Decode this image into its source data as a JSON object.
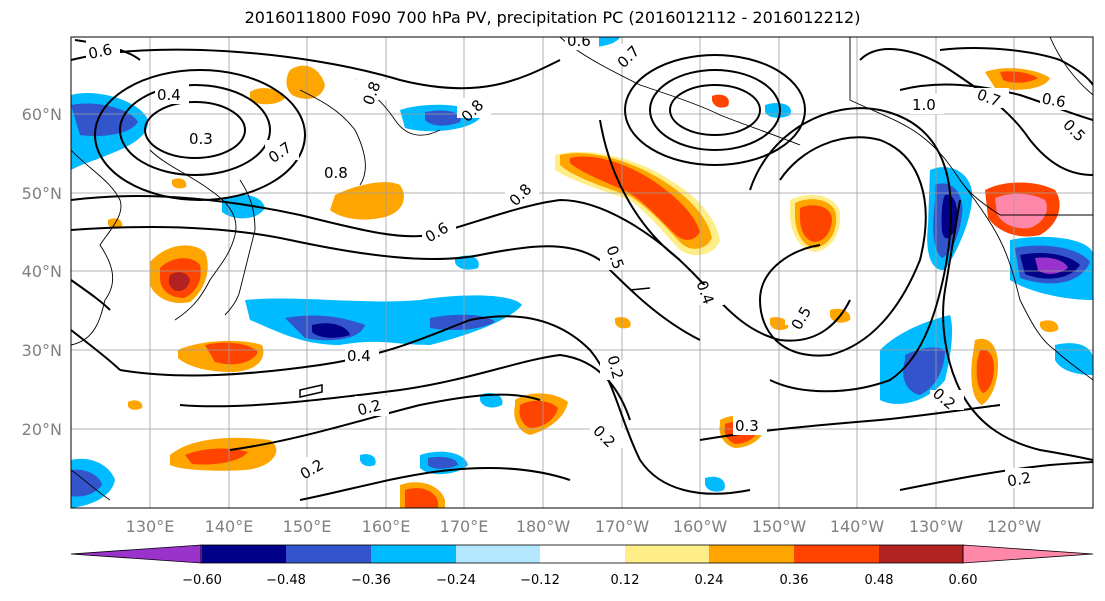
{
  "title": "2016011800 F090 700 hPa PV, precipitation PC (2016012112 - 2016012212)",
  "map": {
    "lon_ticks": [
      "130°E",
      "140°E",
      "150°E",
      "160°E",
      "170°E",
      "180°W",
      "170°W",
      "160°W",
      "150°W",
      "140°W",
      "130°W",
      "120°W"
    ],
    "lat_ticks": [
      "60°N",
      "50°N",
      "40°N",
      "30°N",
      "20°N"
    ],
    "contour_labels": [
      "0.6",
      "0.4",
      "0.3",
      "0.7",
      "0.8",
      "0.8",
      "0.8",
      "0.8",
      "0.6",
      "0.5",
      "0.4",
      "0.5",
      "0.2",
      "0.2",
      "0.3",
      "0.4",
      "0.2",
      "0.2",
      "0.2",
      "0.2",
      "1.0",
      "0.7",
      "0.6",
      "0.5",
      "0.6",
      "0.7"
    ]
  },
  "colorbar": {
    "colors": [
      "#9933cc",
      "#000088",
      "#3355cc",
      "#00bbff",
      "#b3e6ff",
      "#ffffff",
      "#ffee88",
      "#ffa500",
      "#ff4400",
      "#b22222",
      "#ff88aa"
    ],
    "ticks": [
      "−0.60",
      "−0.48",
      "−0.36",
      "−0.24",
      "−0.12",
      "0.12",
      "0.24",
      "0.36",
      "0.48",
      "0.60"
    ]
  }
}
